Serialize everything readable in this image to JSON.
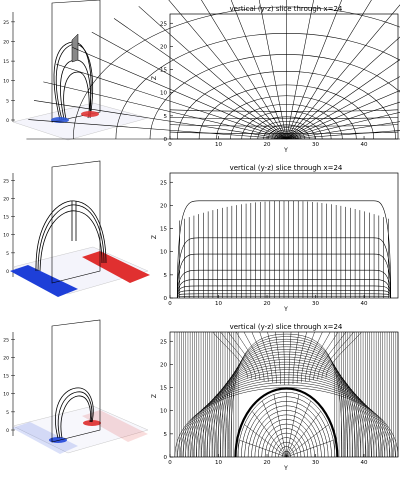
{
  "figure": {
    "rows": [
      {
        "id": "row1",
        "slice_title": "vertical (y-z) slice through x=24",
        "xlabel": "Y",
        "ylabel": "Z",
        "x_ticks": [
          "0",
          "10",
          "20",
          "30",
          "40"
        ],
        "y_ticks": [
          "0",
          "5",
          "10",
          "15",
          "20",
          "25"
        ],
        "iso_z_ticks": [
          "0",
          "5",
          "10",
          "15",
          "20",
          "25"
        ],
        "footpoint_color": "#2b55d6",
        "footpoint_color_2": "#e03636"
      },
      {
        "id": "row2",
        "slice_title": "vertical (y-z) slice through x=24",
        "xlabel": "Y",
        "ylabel": "Z",
        "x_ticks": [
          "0",
          "10",
          "20",
          "30",
          "40"
        ],
        "y_ticks": [
          "0",
          "5",
          "10",
          "15",
          "20",
          "25"
        ],
        "iso_z_ticks": [
          "0",
          "5",
          "10",
          "15",
          "20",
          "25"
        ],
        "footpoint_color": "#1e3fd8",
        "footpoint_color_2": "#e03030"
      },
      {
        "id": "row3",
        "slice_title": "vertical (y-z) slice through x=24",
        "xlabel": "Y",
        "ylabel": "Z",
        "x_ticks": [
          "0",
          "10",
          "20",
          "30",
          "40"
        ],
        "y_ticks": [
          "0",
          "5",
          "10",
          "15",
          "20",
          "25"
        ],
        "iso_z_ticks": [
          "0",
          "5",
          "10",
          "15",
          "20",
          "25"
        ],
        "footpoint_color": "#3355dd",
        "footpoint_color_2": "#e04040"
      }
    ]
  }
}
